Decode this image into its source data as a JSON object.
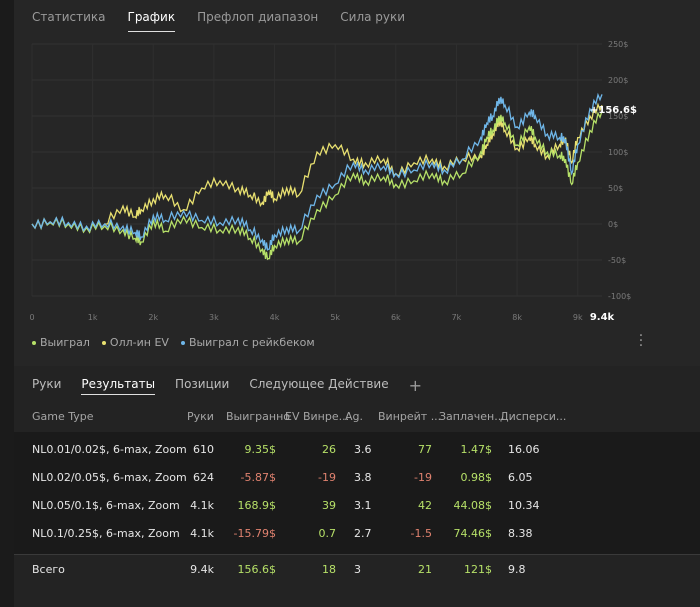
{
  "top_tabs": [
    {
      "label": "Статистика",
      "active": false
    },
    {
      "label": "График",
      "active": true
    },
    {
      "label": "Префлоп диапазон",
      "active": false
    },
    {
      "label": "Сила руки",
      "active": false
    }
  ],
  "chart_data": {
    "type": "line",
    "y_ticks": [
      "250$",
      "200$",
      "150$",
      "100$",
      "50$",
      "0$",
      "-50$",
      "-100$"
    ],
    "x_ticks": [
      "0",
      "1k",
      "2k",
      "3k",
      "4k",
      "5k",
      "6k",
      "7k",
      "8k",
      "9k"
    ],
    "x_end_label": "9.4k",
    "end_value_label": "+156.6$",
    "ylim": [
      -100,
      250
    ],
    "xlim": [
      0,
      9400
    ],
    "grid": true,
    "series": [
      {
        "name": "Выиграл",
        "color": "#b6e068",
        "x": [
          0,
          300,
          600,
          900,
          1200,
          1500,
          1700,
          1800,
          2000,
          2200,
          2500,
          2800,
          3100,
          3400,
          3600,
          3800,
          3900,
          4000,
          4200,
          4400,
          4700,
          5000,
          5300,
          5500,
          5800,
          6000,
          6300,
          6600,
          6800,
          7100,
          7400,
          7500,
          7600,
          7700,
          7800,
          8000,
          8200,
          8300,
          8500,
          8700,
          8800,
          8900,
          9000,
          9200,
          9400
        ],
        "y": [
          0,
          2,
          0,
          -5,
          -3,
          -8,
          -20,
          -25,
          5,
          -10,
          10,
          -5,
          -8,
          -5,
          -20,
          -35,
          -48,
          -30,
          -20,
          -25,
          20,
          40,
          70,
          60,
          65,
          55,
          60,
          70,
          60,
          70,
          100,
          120,
          130,
          150,
          140,
          110,
          135,
          120,
          100,
          95,
          90,
          55,
          85,
          130,
          156.6
        ]
      },
      {
        "name": "Олл-ин EV",
        "color": "#e8e070",
        "x": [
          0,
          300,
          600,
          900,
          1200,
          1500,
          1700,
          1800,
          2000,
          2200,
          2500,
          2800,
          3100,
          3400,
          3600,
          3800,
          3900,
          4000,
          4200,
          4400,
          4700,
          5000,
          5300,
          5500,
          5800,
          6000,
          6300,
          6600,
          6800,
          7100,
          7400,
          7500,
          7600,
          7700,
          7800,
          8000,
          8200,
          8300,
          8500,
          8700,
          8800,
          8900,
          9000,
          9200,
          9400
        ],
        "y": [
          0,
          3,
          1,
          -5,
          0,
          25,
          10,
          20,
          35,
          40,
          20,
          50,
          60,
          50,
          40,
          30,
          45,
          35,
          50,
          40,
          100,
          110,
          90,
          85,
          90,
          70,
          85,
          90,
          80,
          90,
          95,
          110,
          125,
          145,
          130,
          105,
          120,
          110,
          95,
          110,
          120,
          85,
          120,
          150,
          165
        ]
      },
      {
        "name": "Выиграл с рейкбеком",
        "color": "#6fb6e8",
        "x": [
          0,
          300,
          600,
          900,
          1200,
          1500,
          1700,
          1800,
          2000,
          2200,
          2500,
          2800,
          3100,
          3400,
          3600,
          3800,
          3900,
          4000,
          4200,
          4400,
          4700,
          5000,
          5300,
          5500,
          5800,
          6000,
          6300,
          6600,
          6800,
          7100,
          7400,
          7500,
          7600,
          7700,
          7800,
          8000,
          8200,
          8300,
          8500,
          8700,
          8800,
          8900,
          9000,
          9200,
          9400
        ],
        "y": [
          0,
          3,
          2,
          -3,
          0,
          -3,
          -12,
          -18,
          12,
          5,
          18,
          5,
          2,
          8,
          -8,
          -22,
          -35,
          -15,
          -5,
          -10,
          40,
          55,
          85,
          75,
          80,
          70,
          75,
          85,
          75,
          90,
          120,
          140,
          150,
          175,
          165,
          135,
          155,
          150,
          125,
          120,
          118,
          70,
          110,
          160,
          180
        ]
      }
    ]
  },
  "legend": [
    {
      "label": "Выиграл",
      "color": "#b6e068"
    },
    {
      "label": "Олл-ин EV",
      "color": "#e8e070"
    },
    {
      "label": "Выиграл с рейкбеком",
      "color": "#6fb6e8"
    }
  ],
  "menu_icon": "kebab-icon",
  "bottom_tabs": [
    {
      "label": "Руки",
      "active": false
    },
    {
      "label": "Результаты",
      "active": true
    },
    {
      "label": "Позиции",
      "active": false
    },
    {
      "label": "Следующее Действие",
      "active": false
    }
  ],
  "add_tab_label": "+",
  "table": {
    "headers": [
      "Game Type",
      "Руки",
      "Выигранно",
      "EV Винре...",
      "Ag.",
      "Винрейт ...",
      "Заплачен...",
      "Дисперси..."
    ],
    "rows": [
      {
        "game": "NL0.01/0.02$, 6-max, Zoom",
        "hands": "610",
        "won": "9.35$",
        "won_sign": "pos",
        "ev": "26",
        "ev_sign": "pos",
        "ag": "3.6",
        "winrate": "77",
        "wr_sign": "pos",
        "paid": "1.47$",
        "disp": "16.06"
      },
      {
        "game": "NL0.02/0.05$, 6-max, Zoom",
        "hands": "624",
        "won": "-5.87$",
        "won_sign": "neg",
        "ev": "-19",
        "ev_sign": "neg",
        "ag": "3.8",
        "winrate": "-19",
        "wr_sign": "neg",
        "paid": "0.98$",
        "disp": "6.05"
      },
      {
        "game": "NL0.05/0.1$, 6-max, Zoom",
        "hands": "4.1k",
        "won": "168.9$",
        "won_sign": "pos",
        "ev": "39",
        "ev_sign": "pos",
        "ag": "3.1",
        "winrate": "42",
        "wr_sign": "pos",
        "paid": "44.08$",
        "disp": "10.34"
      },
      {
        "game": "NL0.1/0.25$, 6-max, Zoom",
        "hands": "4.1k",
        "won": "-15.79$",
        "won_sign": "neg",
        "ev": "0.7",
        "ev_sign": "pos",
        "ag": "2.7",
        "winrate": "-1.5",
        "wr_sign": "neg",
        "paid": "74.46$",
        "disp": "8.38"
      }
    ],
    "total": {
      "game": "Всего",
      "hands": "9.4k",
      "won": "156.6$",
      "won_sign": "pos",
      "ev": "18",
      "ev_sign": "pos",
      "ag": "3",
      "winrate": "21",
      "wr_sign": "pos",
      "paid": "121$",
      "disp": "9.8"
    }
  }
}
